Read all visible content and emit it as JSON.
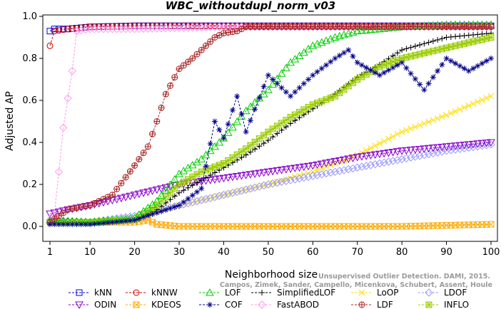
{
  "chart_data": {
    "type": "line",
    "title": "WBC_withoutdupl_norm_v03",
    "xlabel": "Neighborhood size",
    "ylabel": "Adjusted AP",
    "xlim": [
      1,
      100
    ],
    "ylim": [
      0,
      1
    ],
    "xticks": [
      1,
      10,
      20,
      30,
      40,
      50,
      60,
      70,
      80,
      90,
      100
    ],
    "yticks": [
      0.0,
      0.2,
      0.4,
      0.6,
      0.8,
      1.0
    ],
    "ytick_labels": [
      "0.0",
      "0.2",
      "0.4",
      "0.6",
      "0.8",
      "1.0"
    ],
    "grid": false,
    "legend_position": "bottom",
    "watermark": [
      "Unsupervised Outlier Detection. DAMI, 2015.",
      "Campos, Zimek, Sander, Campello, Micenkova, Schubert, Assent, Houle"
    ],
    "series": [
      {
        "name": "kNN",
        "color": "#0000dd",
        "marker": "square",
        "x": [
          1,
          2,
          5,
          10,
          20,
          40,
          60,
          80,
          100
        ],
        "y": [
          0.93,
          0.94,
          0.94,
          0.95,
          0.955,
          0.955,
          0.955,
          0.955,
          0.955
        ]
      },
      {
        "name": "kNNW",
        "color": "#cc0000",
        "marker": "circle",
        "x": [
          1,
          2,
          5,
          10,
          20,
          30,
          40,
          60,
          80,
          100
        ],
        "y": [
          0.86,
          0.93,
          0.94,
          0.95,
          0.955,
          0.955,
          0.955,
          0.955,
          0.955,
          0.955
        ]
      },
      {
        "name": "LOF",
        "color": "#00cc00",
        "marker": "triangle-up",
        "x": [
          1,
          10,
          20,
          25,
          30,
          35,
          40,
          45,
          50,
          55,
          60,
          65,
          70,
          80,
          90,
          100
        ],
        "y": [
          0.03,
          0.02,
          0.04,
          0.12,
          0.25,
          0.32,
          0.42,
          0.55,
          0.65,
          0.78,
          0.86,
          0.9,
          0.93,
          0.95,
          0.96,
          0.96
        ]
      },
      {
        "name": "SimplifiedLOF",
        "color": "#000000",
        "marker": "plus",
        "x": [
          1,
          10,
          20,
          25,
          30,
          35,
          40,
          45,
          50,
          55,
          60,
          65,
          70,
          75,
          80,
          90,
          100
        ],
        "y": [
          0.03,
          0.02,
          0.03,
          0.08,
          0.16,
          0.22,
          0.28,
          0.34,
          0.41,
          0.49,
          0.56,
          0.63,
          0.71,
          0.77,
          0.84,
          0.9,
          0.92
        ]
      },
      {
        "name": "LoOP",
        "color": "#ffdd00",
        "marker": "cross",
        "x": [
          1,
          10,
          20,
          30,
          40,
          50,
          60,
          70,
          80,
          90,
          100
        ],
        "y": [
          0.02,
          0.02,
          0.04,
          0.1,
          0.15,
          0.2,
          0.26,
          0.34,
          0.45,
          0.53,
          0.62
        ]
      },
      {
        "name": "LDOF",
        "color": "#9999ff",
        "marker": "diamond",
        "x": [
          1,
          10,
          20,
          30,
          40,
          50,
          60,
          70,
          80,
          90,
          100
        ],
        "y": [
          0.03,
          0.02,
          0.05,
          0.1,
          0.15,
          0.2,
          0.24,
          0.28,
          0.32,
          0.36,
          0.39
        ]
      },
      {
        "name": "ODIN",
        "color": "#8800cc",
        "marker": "triangle-down",
        "x": [
          1,
          5,
          10,
          20,
          30,
          40,
          50,
          60,
          70,
          80,
          90,
          100
        ],
        "y": [
          0.06,
          0.08,
          0.1,
          0.15,
          0.2,
          0.23,
          0.26,
          0.29,
          0.33,
          0.36,
          0.38,
          0.4
        ]
      },
      {
        "name": "KDEOS",
        "color": "#ffaa00",
        "marker": "square-x",
        "x": [
          1,
          10,
          20,
          23,
          25,
          30,
          40,
          60,
          80,
          100
        ],
        "y": [
          0.02,
          0.02,
          0.02,
          0.03,
          0.01,
          0.0,
          0.0,
          0.0,
          0.0,
          0.01
        ]
      },
      {
        "name": "COF",
        "color": "#000088",
        "marker": "asterisk",
        "x": [
          1,
          10,
          20,
          30,
          35,
          38,
          40,
          43,
          45,
          50,
          55,
          60,
          65,
          68,
          70,
          75,
          80,
          85,
          90,
          95,
          100
        ],
        "y": [
          0.01,
          0.01,
          0.03,
          0.1,
          0.18,
          0.5,
          0.42,
          0.62,
          0.45,
          0.72,
          0.62,
          0.72,
          0.8,
          0.84,
          0.78,
          0.72,
          0.78,
          0.65,
          0.8,
          0.74,
          0.8
        ]
      },
      {
        "name": "FastABOD",
        "color": "#ff99ee",
        "marker": "diamond",
        "x": [
          1,
          2,
          3,
          4,
          5,
          6,
          7,
          10,
          20,
          40,
          60,
          80,
          100
        ],
        "y": [
          0.03,
          0.06,
          0.26,
          0.47,
          0.61,
          0.74,
          0.93,
          0.94,
          0.94,
          0.95,
          0.95,
          0.95,
          0.95
        ]
      },
      {
        "name": "LDF",
        "color": "#aa2222",
        "marker": "circle-plus",
        "x": [
          1,
          5,
          10,
          15,
          20,
          23,
          25,
          27,
          30,
          33,
          35,
          38,
          40,
          43,
          45,
          60,
          80,
          100
        ],
        "y": [
          0.02,
          0.08,
          0.1,
          0.15,
          0.29,
          0.38,
          0.5,
          0.63,
          0.75,
          0.8,
          0.84,
          0.9,
          0.92,
          0.93,
          0.95,
          0.95,
          0.95,
          0.95
        ]
      },
      {
        "name": "INFLO",
        "color": "#99cc00",
        "marker": "square-asterisk",
        "x": [
          1,
          10,
          20,
          25,
          30,
          35,
          40,
          45,
          50,
          55,
          60,
          65,
          70,
          75,
          80,
          90,
          100
        ],
        "y": [
          0.02,
          0.02,
          0.03,
          0.1,
          0.2,
          0.26,
          0.3,
          0.37,
          0.45,
          0.52,
          0.58,
          0.62,
          0.7,
          0.76,
          0.8,
          0.85,
          0.9
        ]
      }
    ]
  }
}
